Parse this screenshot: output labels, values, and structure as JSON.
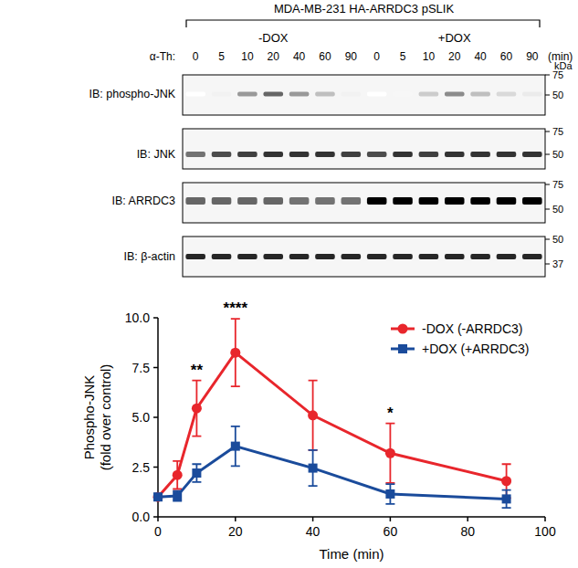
{
  "blot": {
    "title": "MDA-MB-231 HA-ARRDC3 pSLIK",
    "treatment_label": "α-Th:",
    "time_unit": "(min)",
    "marker_unit": "kDa",
    "groups": [
      {
        "label": "-DOX",
        "times": [
          0,
          5,
          10,
          20,
          40,
          60,
          90
        ]
      },
      {
        "label": "+DOX",
        "times": [
          0,
          5,
          10,
          20,
          40,
          60,
          90
        ]
      }
    ],
    "rows": [
      {
        "label": "IB: phospho-JNK",
        "markers": [
          75,
          50
        ],
        "intensity": [
          0,
          0.05,
          0.4,
          0.6,
          0.4,
          0.25,
          0.05,
          0,
          0.03,
          0.2,
          0.45,
          0.25,
          0.15,
          0.08
        ]
      },
      {
        "label": "IB: JNK",
        "markers": [
          75,
          50
        ],
        "intensity": [
          0.55,
          0.7,
          0.75,
          0.8,
          0.8,
          0.8,
          0.75,
          0.7,
          0.8,
          0.75,
          0.8,
          0.8,
          0.8,
          0.8
        ]
      },
      {
        "label": "IB: ARRDC3",
        "markers": [
          75,
          50
        ],
        "intensity": [
          0.6,
          0.6,
          0.6,
          0.6,
          0.55,
          0.55,
          0.55,
          1,
          1,
          1,
          1,
          1,
          1,
          1
        ]
      },
      {
        "label": "IB: β-actin",
        "markers": [
          50,
          37
        ],
        "intensity": [
          0.85,
          0.85,
          0.85,
          0.85,
          0.85,
          0.85,
          0.85,
          0.85,
          0.85,
          0.85,
          0.85,
          0.85,
          0.85,
          0.85
        ]
      }
    ]
  },
  "chart_data": {
    "type": "line",
    "x": [
      0,
      5,
      10,
      20,
      40,
      60,
      90
    ],
    "xlabel": "Time (min)",
    "ylabel": [
      "Phospho-JNK",
      "(fold over control)"
    ],
    "xlim": [
      0,
      100
    ],
    "xticks": [
      0,
      20,
      40,
      60,
      80,
      100
    ],
    "ylim": [
      0,
      10
    ],
    "yticks": [
      {
        "value": 0,
        "label": "0.0"
      },
      {
        "value": 2.5,
        "label": "2.5"
      },
      {
        "value": 5,
        "label": "5.0"
      },
      {
        "value": 7.5,
        "label": "7.5"
      },
      {
        "value": 10,
        "label": "10.0"
      }
    ],
    "legend": "upper right",
    "series": [
      {
        "name": "-DOX (-ARRDC3)",
        "color": "#e8262c",
        "marker": "circle",
        "values": [
          1,
          2.1,
          5.45,
          8.25,
          5.1,
          3.2,
          1.8
        ],
        "errors": [
          0,
          0.7,
          1.4,
          1.7,
          1.75,
          1.5,
          0.85
        ]
      },
      {
        "name": "+DOX (+ARRDC3)",
        "color": "#1a4b9b",
        "marker": "square",
        "values": [
          1,
          1.05,
          2.2,
          3.55,
          2.45,
          1.15,
          0.9
        ],
        "errors": [
          0,
          0.25,
          0.45,
          1.0,
          0.9,
          0.5,
          0.45
        ]
      }
    ],
    "annotations": [
      {
        "x": 10,
        "label": "**"
      },
      {
        "x": 20,
        "label": "****"
      },
      {
        "x": 60,
        "label": "*"
      }
    ]
  }
}
